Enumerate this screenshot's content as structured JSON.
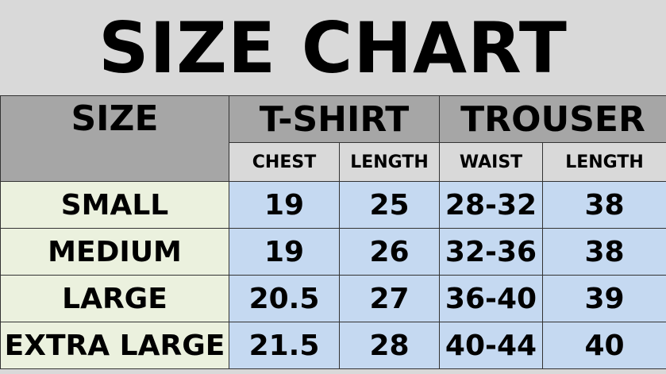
{
  "title": "SIZE CHART",
  "header": {
    "size": "SIZE",
    "tshirt": "T-SHIRT",
    "trouser": "TROUSER"
  },
  "subheader": [
    "CHEST",
    "LENGTH",
    "WAIST",
    "LENGTH"
  ],
  "rows": [
    {
      "size": "SMALL",
      "values": [
        "19",
        "25",
        "28-32",
        "38"
      ]
    },
    {
      "size": "MEDIUM",
      "values": [
        "19",
        "26",
        "32-36",
        "38"
      ]
    },
    {
      "size": "LARGE",
      "values": [
        "20.5",
        "27",
        "36-40",
        "39"
      ]
    },
    {
      "size": "EXTRA LARGE",
      "values": [
        "21.5",
        "28",
        "40-44",
        "40"
      ]
    }
  ],
  "colors": {
    "title_bg": "#d9d9d9",
    "header_bg": "#a6a6a6",
    "size_col_bg": "#ebf1de",
    "value_bg": "#c5d9f1"
  }
}
